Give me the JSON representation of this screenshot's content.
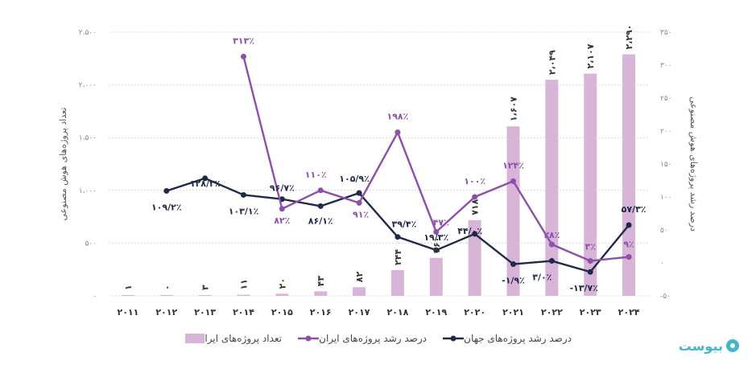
{
  "chart_data": {
    "type": "bar+line",
    "categories": [
      "۲۰۱۱",
      "۲۰۱۲",
      "۲۰۱۳",
      "۲۰۱۴",
      "۲۰۱۵",
      "۲۰۱۶",
      "۲۰۱۷",
      "۲۰۱۸",
      "۲۰۱۹",
      "۲۰۲۰",
      "۲۰۲۱",
      "۲۰۲۲",
      "۲۰۲۳",
      "۲۰۲۴"
    ],
    "left_axis": {
      "label": "تعداد پروژه‌های هوش مصنوعی",
      "ylim": [
        0,
        2500
      ],
      "ticks": [
        0,
        500,
        1000,
        1500,
        2000,
        2500
      ],
      "tick_labels": [
        "۰",
        "۵۰۰",
        "۱،۰۰۰",
        "۱،۵۰۰",
        "۲،۰۰۰",
        "۲،۵۰۰"
      ]
    },
    "right_axis": {
      "label": "درصد رشد پروژه‌های هوش مصنوعی",
      "ylim": [
        -50,
        350
      ],
      "ticks": [
        -50,
        0,
        50,
        100,
        150,
        200,
        250,
        300,
        350
      ],
      "tick_labels": [
        "-۵۰",
        "۰",
        "۵۰",
        "۱۰۰",
        "۱۵۰",
        "۲۰۰",
        "۲۵۰",
        "۳۰۰",
        "۳۵۰"
      ]
    },
    "bars": {
      "name": "تعداد پروژه‌های ایران",
      "color": "#d8b4d8",
      "values": [
        1,
        0,
        3,
        11,
        20,
        43,
        82,
        244,
        360,
        718,
        1607,
        2049,
        2107,
        2290
      ],
      "labels": [
        "۱",
        "۰",
        "۳",
        "۱۱",
        "۲۰",
        "۴۳",
        "۸۲",
        "۲۴۴",
        "۳۶۰",
        "۷۱۸",
        "۱،۶۰۷",
        "۲،۰۴۹",
        "۲،۱۰۷",
        "۲،۲۹۰"
      ]
    },
    "iran_growth": {
      "name": "درصد رشد پروژه‌های ایران",
      "color": "#8e4fa8",
      "values": [
        null,
        null,
        null,
        313,
        82,
        110,
        91,
        198,
        47,
        100,
        124,
        28,
        3,
        9
      ],
      "labels": [
        "",
        "",
        "",
        "۳۱۳٪",
        "۸۲٪",
        "۱۱۰٪",
        "۹۱٪",
        "۱۹۸٪",
        "۴۷٪",
        "۱۰۰٪",
        "۱۲۴٪",
        "۲۸٪",
        "۳٪",
        "۹٪"
      ]
    },
    "world_growth": {
      "name": "درصد رشد پروژه‌های جهان",
      "color": "#1f2a48",
      "values": [
        null,
        109.2,
        128.3,
        103.1,
        96.7,
        86.1,
        105.9,
        39.4,
        19.3,
        44.0,
        -1.9,
        3.0,
        -13.7,
        57.3
      ],
      "labels": [
        "",
        "۱۰۹/۲٪",
        "۱۲۸/۳٪",
        "۱۰۳/۱٪",
        "۹۶/۷٪",
        "۸۶/۱٪",
        "۱۰۵/۹٪",
        "۳۹/۴٪",
        "۱۹/۳٪",
        "۴۴/۰٪",
        "-۱/۹٪",
        "۳/۰٪",
        "-۱۳/۷٪",
        "۵۷/۳٪"
      ]
    },
    "grid": true,
    "legend_position": "bottom"
  }
}
